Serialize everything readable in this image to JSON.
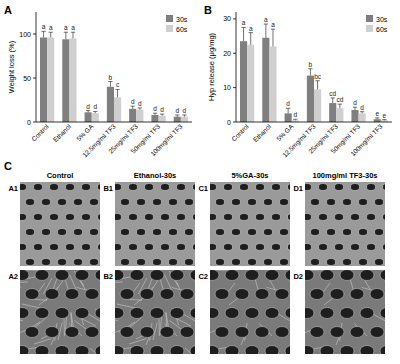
{
  "chart_data": [
    {
      "type": "bar",
      "title": "A",
      "y_label": "Weight loss (%)",
      "categories": [
        "Control",
        "Ethanol",
        "5% GA",
        "12.5mg/ml TF3",
        "25mg/ml TF3",
        "50mg/ml TF3",
        "100mg/ml TF3"
      ],
      "series": [
        {
          "name": "30s",
          "color": "#7f7f7f",
          "values": [
            96,
            94,
            11,
            40,
            15,
            8,
            6
          ],
          "errors": [
            7,
            8,
            2,
            6,
            3,
            2,
            2
          ],
          "letters": [
            "a",
            "a",
            "d",
            "b",
            "d",
            "d",
            "d"
          ]
        },
        {
          "name": "60s",
          "color": "#cfcfcf",
          "values": [
            96,
            95,
            10,
            28,
            14,
            7,
            6
          ],
          "errors": [
            6,
            7,
            2,
            9,
            2,
            2,
            2
          ],
          "letters": [
            "a",
            "a",
            "d",
            "c",
            "d",
            "d",
            "d"
          ]
        }
      ],
      "ylim": [
        0,
        125
      ],
      "yticks": [
        0,
        50,
        100
      ],
      "grid": false,
      "legend": "upper right"
    },
    {
      "type": "bar",
      "title": "B",
      "y_label": "Hyp release (μg/mg)",
      "categories": [
        "Control",
        "Ethanol",
        "5% GA",
        "12.5mg/ml TF3",
        "25mg/ml TF3",
        "50mg/ml TF3",
        "100mg/ml TF3"
      ],
      "series": [
        {
          "name": "30s",
          "color": "#7f7f7f",
          "values": [
            23.5,
            24.5,
            2.5,
            13.5,
            5.5,
            3.5,
            0.8
          ],
          "errors": [
            4,
            4,
            1.5,
            2,
            1.5,
            0.8,
            0.4
          ],
          "letters": [
            "a",
            "a",
            "d",
            "b",
            "cd",
            "d",
            "e"
          ]
        },
        {
          "name": "60s",
          "color": "#cfcfcf",
          "values": [
            22.5,
            22,
            0.5,
            9.5,
            4,
            2.5,
            0.5
          ],
          "errors": [
            3.5,
            5,
            0.3,
            2.5,
            1.2,
            0.5,
            0.2
          ],
          "letters": [
            "a",
            "a",
            "d",
            "bc",
            "cd",
            "d",
            "e"
          ]
        }
      ],
      "ylim": [
        0,
        32
      ],
      "yticks": [
        0,
        10,
        20,
        30
      ],
      "grid": false,
      "legend": "upper right"
    }
  ],
  "panel_c": {
    "title": "C",
    "columns": [
      "Control",
      "Ethanol-30s",
      "5%GA-30s",
      "100mg/ml TF3-30s"
    ],
    "cells": [
      [
        "A1",
        "B1",
        "C1",
        "D1"
      ],
      [
        "A2",
        "B2",
        "C2",
        "D2"
      ]
    ]
  }
}
